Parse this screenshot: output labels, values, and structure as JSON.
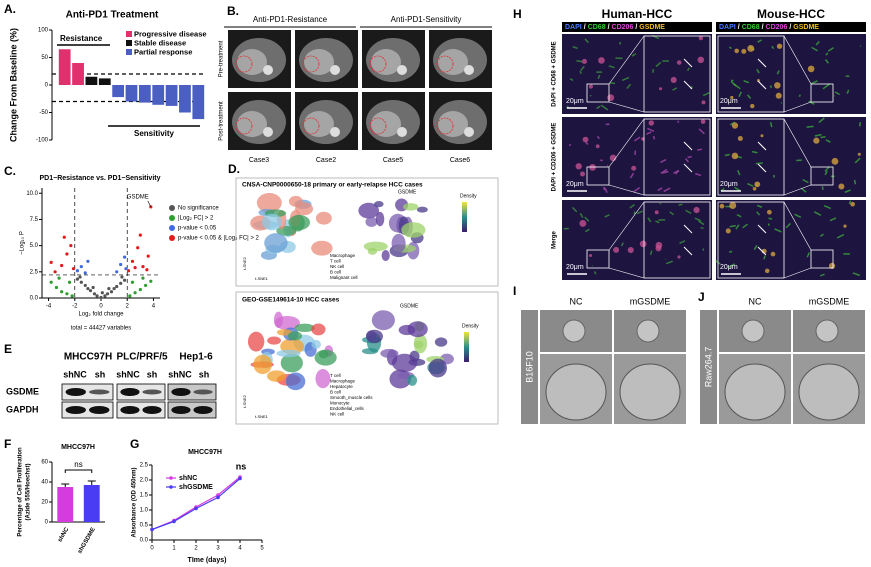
{
  "panel_letters": {
    "A": "A.",
    "B": "B.",
    "C": "C.",
    "D": "D.",
    "E": "E",
    "F": "F",
    "G": "G",
    "H": "H",
    "I": "I",
    "J": "J"
  },
  "panel_b": {
    "groups": [
      "Anti-PD1-Resistance",
      "Anti-PD1-Sensitivity"
    ],
    "rows": [
      "Pre-treatment",
      "Post-treatment"
    ],
    "cases": [
      "Case3",
      "Case2",
      "Case5",
      "Case6"
    ]
  },
  "panel_d": {
    "top_title": "CNSA-CNP0000650-18 primary or early-relapse HCC cases",
    "top_gene": "GSDME",
    "top_legend": [
      "Macrophage",
      "T cell",
      "NK cell",
      "B cell",
      "Malignant cell"
    ],
    "density_label": "Density",
    "bottom_title": "GEO-GSE149614-10 HCC cases",
    "bottom_gene": "GSDME",
    "bottom_legend": [
      "T cell",
      "Macrophage",
      "Hepatocyte",
      "B cell",
      "Smooth_muscle cells",
      "Monocyte",
      "Endothelial_cells",
      "NK cell"
    ],
    "axis_x": "t-SNE1",
    "axis_y": "t-SNE2"
  },
  "panel_e": {
    "cell_lines": [
      "MHCC97H",
      "PLC/PRF/5",
      "Hep1-6"
    ],
    "lanes": [
      "shNC",
      "sh",
      "shNC",
      "sh",
      "shNC",
      "sh"
    ],
    "proteins": [
      "GSDME",
      "GAPDH"
    ]
  },
  "panel_h": {
    "columns": [
      "Human-HCC",
      "Mouse-HCC"
    ],
    "stains": [
      "DAPI",
      "CD68",
      "CD206",
      "GSDME"
    ],
    "stain_colors": [
      "#4a7bff",
      "#33cc33",
      "#e040e0",
      "#f0c020"
    ],
    "separator": "/",
    "row_labels": [
      "DAPI + CD68 + GSDME",
      "DAPI + CD206 + GSDME",
      "Merge"
    ],
    "scale_bar": "20μm"
  },
  "panel_i": {
    "columns": [
      "NC",
      "mGSDME"
    ],
    "cell_line": "B16F10"
  },
  "panel_j": {
    "columns": [
      "NC",
      "mGSDME"
    ],
    "cell_line": "Raw264.7"
  },
  "chart_data": [
    {
      "type": "bar",
      "title": "Anti-PD1 Treatment",
      "y_label": "Change From Baseline (%)",
      "series": [
        {
          "name": "Progressive disease",
          "color": "#e0306e",
          "values": [
            65,
            40,
            null,
            null,
            null,
            null,
            null,
            null,
            null,
            null,
            null
          ]
        },
        {
          "name": "Stable disease",
          "color": "#111111",
          "values": [
            null,
            null,
            15,
            12,
            null,
            null,
            null,
            null,
            null,
            null,
            null
          ]
        },
        {
          "name": "Partial response",
          "color": "#4a5fc1",
          "values": [
            null,
            null,
            null,
            null,
            -22,
            -30,
            -32,
            -36,
            -38,
            -50,
            -62
          ]
        }
      ],
      "ylim": [
        -100,
        100
      ],
      "yticks": [
        100,
        50,
        0,
        -50,
        -100
      ],
      "hlines": [
        20,
        -30
      ],
      "annotations": [
        "Resistance",
        "Sensitivity"
      ],
      "legend": "upper right"
    },
    {
      "type": "scatter",
      "title": "PD1−Resistance vs. PD1−Sensitivity",
      "x_label": "Log₂ fold change",
      "y_label": "−Log₁₀ P",
      "caption": "total = 44427 variables",
      "series": [
        {
          "name": "No significance",
          "color": "#555555",
          "x": [
            -1.8,
            -1.5,
            -1.2,
            -1,
            -0.8,
            -0.5,
            -0.3,
            0,
            0.3,
            0.5,
            0.8,
            1,
            1.2,
            1.5,
            1.8,
            -1.6,
            1.6,
            -0.6,
            0.6,
            0.1
          ],
          "y": [
            1.8,
            1.5,
            1.2,
            0.9,
            0.7,
            0.4,
            0.2,
            0.05,
            0.2,
            0.4,
            0.6,
            0.9,
            1.1,
            1.4,
            1.7,
            2.0,
            2.0,
            1.0,
            0.9,
            0.5
          ]
        },
        {
          "name": "|Log₂ FC| > 2",
          "color": "#2e9e2e",
          "x": [
            -3.8,
            -3.4,
            -3,
            -2.6,
            -2.2,
            2.2,
            2.6,
            3,
            3.4,
            3.8,
            -3.2,
            3.2,
            -2.4,
            2.4
          ],
          "y": [
            1.5,
            1.0,
            0.6,
            0.4,
            0.2,
            0.2,
            0.5,
            0.8,
            1.2,
            1.6,
            1.9,
            1.9,
            1.5,
            1.5
          ]
        },
        {
          "name": "p-value < 0.05",
          "color": "#4169e1",
          "x": [
            -1.8,
            -1.5,
            -1.2,
            1.2,
            1.5,
            1.8,
            -1.0,
            1.9
          ],
          "y": [
            2.6,
            3.0,
            2.4,
            2.5,
            3.2,
            3.9,
            3.5,
            2.8
          ]
        },
        {
          "name": "p-value < 0.05 & |Log₂ FC| > 2",
          "color": "#e31a1c",
          "x": [
            -3.5,
            -3,
            -2.6,
            -2.3,
            -2.1,
            2.1,
            2.4,
            2.8,
            3.2,
            3.6,
            3.8,
            -3.8,
            3.0,
            2.6,
            -2.8,
            3.5
          ],
          "y": [
            2.5,
            3.1,
            4.2,
            5.0,
            2.8,
            2.6,
            3.5,
            4.8,
            3.0,
            4.0,
            8.7,
            3.4,
            6.0,
            2.9,
            5.8,
            2.7
          ]
        }
      ],
      "xlim": [
        -4.5,
        4.5
      ],
      "xticks": [
        -4,
        -2,
        0,
        2,
        4
      ],
      "ylim": [
        0,
        10.5
      ],
      "yticks": [
        {
          "value": 0,
          "label": "0.0"
        },
        2.5,
        {
          "value": 5,
          "label": "5.0"
        },
        7.5,
        {
          "value": 10,
          "label": "10.0"
        }
      ],
      "vlines": [
        -2,
        2
      ],
      "hlines": [
        2.2
      ],
      "annotations": [
        "GSDME"
      ],
      "legend": "right"
    },
    {
      "type": "bar",
      "title": "MHCC97H",
      "y_label": [
        "Percentage of Cell Proliferation",
        "(Azide 555/Hoechst)"
      ],
      "categories": [
        "shNC",
        "shGSDME"
      ],
      "values": [
        35,
        37
      ],
      "errors": [
        3,
        4
      ],
      "colors": [
        "#d63be0",
        "#4a3cf5"
      ],
      "ylim": [
        0,
        60
      ],
      "yticks": [
        0,
        20,
        40,
        60
      ],
      "annotations": [
        "ns"
      ]
    },
    {
      "type": "line",
      "title": "MHCC97H",
      "x_label": "TIme (days)",
      "y_label": "Absorbance (OD 450nm)",
      "x": [
        0,
        1,
        2,
        3,
        4
      ],
      "series": [
        {
          "name": "shNC",
          "color": "#d63be0",
          "values": [
            0.35,
            0.65,
            1.1,
            1.5,
            2.1
          ]
        },
        {
          "name": "shGSDME",
          "color": "#4a3cf5",
          "values": [
            0.35,
            0.62,
            1.05,
            1.42,
            2.05
          ]
        }
      ],
      "xlim": [
        0,
        5
      ],
      "xticks": [
        0,
        1,
        2,
        3,
        4,
        5
      ],
      "ylim": [
        0,
        2.5
      ],
      "yticks": [
        {
          "value": 0,
          "label": "0.0"
        },
        0.5,
        {
          "value": 1,
          "label": "1.0"
        },
        1.5,
        {
          "value": 2,
          "label": "2.0"
        },
        2.5
      ],
      "annotations": [
        "ns"
      ],
      "legend": "upper left"
    }
  ]
}
